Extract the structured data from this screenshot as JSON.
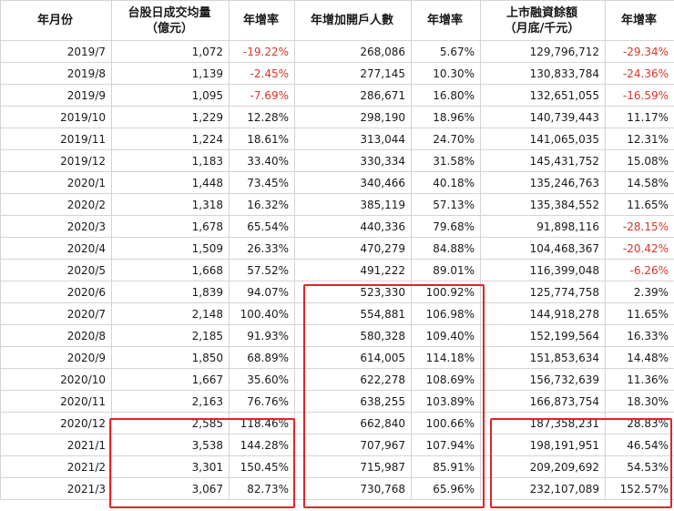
{
  "headers": [
    "年月份",
    "台股日成交均量\n（億元）",
    "年增率",
    "年增加開戶人數",
    "年增率",
    "上市融資餘額\n（月底/千元）",
    "年增率"
  ],
  "rows": [
    [
      "2019/7",
      "1,072",
      "-19.22%",
      "268,086",
      "5.67%",
      "129,796,712",
      "-29.34%"
    ],
    [
      "2019/8",
      "1,139",
      "-2.45%",
      "277,145",
      "10.30%",
      "130,833,784",
      "-24.36%"
    ],
    [
      "2019/9",
      "1,095",
      "-7.69%",
      "286,671",
      "16.80%",
      "132,651,055",
      "-16.59%"
    ],
    [
      "2019/10",
      "1,229",
      "12.28%",
      "298,190",
      "18.96%",
      "140,739,443",
      "11.17%"
    ],
    [
      "2019/11",
      "1,224",
      "18.61%",
      "313,044",
      "24.70%",
      "141,065,035",
      "12.31%"
    ],
    [
      "2019/12",
      "1,183",
      "33.40%",
      "330,334",
      "31.58%",
      "145,431,752",
      "15.08%"
    ],
    [
      "2020/1",
      "1,448",
      "73.45%",
      "340,466",
      "40.18%",
      "135,246,763",
      "14.58%"
    ],
    [
      "2020/2",
      "1,318",
      "16.32%",
      "385,119",
      "57.13%",
      "135,384,552",
      "11.65%"
    ],
    [
      "2020/3",
      "1,678",
      "65.54%",
      "440,336",
      "79.68%",
      "91,898,116",
      "-28.15%"
    ],
    [
      "2020/4",
      "1,509",
      "26.33%",
      "470,279",
      "84.88%",
      "104,468,367",
      "-20.42%"
    ],
    [
      "2020/5",
      "1,668",
      "57.52%",
      "491,222",
      "89.01%",
      "116,399,048",
      "-6.26%"
    ],
    [
      "2020/6",
      "1,839",
      "94.07%",
      "523,330",
      "100.92%",
      "125,774,758",
      "2.39%"
    ],
    [
      "2020/7",
      "2,148",
      "100.40%",
      "554,881",
      "106.98%",
      "144,918,278",
      "11.65%"
    ],
    [
      "2020/8",
      "2,185",
      "91.93%",
      "580,328",
      "109.40%",
      "152,199,564",
      "16.33%"
    ],
    [
      "2020/9",
      "1,850",
      "68.89%",
      "614,005",
      "114.18%",
      "151,853,634",
      "14.48%"
    ],
    [
      "2020/10",
      "1,667",
      "35.60%",
      "622,278",
      "108.69%",
      "156,732,639",
      "11.36%"
    ],
    [
      "2020/11",
      "2,163",
      "76.76%",
      "638,255",
      "103.89%",
      "166,873,754",
      "18.30%"
    ],
    [
      "2020/12",
      "2,585",
      "118.46%",
      "662,840",
      "100.66%",
      "187,358,231",
      "28.83%"
    ],
    [
      "2021/1",
      "3,538",
      "144.28%",
      "707,967",
      "107.94%",
      "198,191,951",
      "46.54%"
    ],
    [
      "2021/2",
      "3,301",
      "150.45%",
      "715,987",
      "85.91%",
      "209,209,692",
      "54.53%"
    ],
    [
      "2021/3",
      "3,067",
      "82.73%",
      "730,768",
      "65.96%",
      "232,107,089",
      "152.57%"
    ]
  ],
  "colors": {
    "negative": "#d9342b",
    "highlight_box": "#e0242a",
    "grid": "#d4d4d4"
  }
}
